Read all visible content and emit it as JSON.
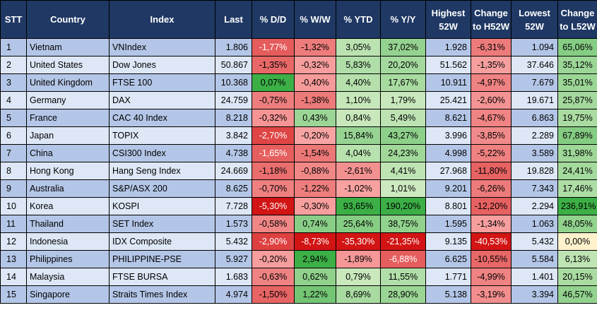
{
  "headers": [
    "STT",
    "Country",
    "Index",
    "Last",
    "% D/D",
    "% W/W",
    "% YTD",
    "% Y/Y",
    "Highest 52W",
    "Change to H52W",
    "Lowest 52W",
    "Change to L52W"
  ],
  "rows": [
    {
      "stt": "1",
      "country": "Vietnam",
      "index": "VNIndex",
      "last": "1.806",
      "dd": "-1,77%",
      "ww": "-1,32%",
      "ytd": "3,05%",
      "yy": "37,02%",
      "high": "1.928",
      "chh": "-6,31%",
      "low": "1.094",
      "chl": "65,06%"
    },
    {
      "stt": "2",
      "country": "United States",
      "index": "Dow Jones",
      "last": "50.867",
      "dd": "-1,35%",
      "ww": "-0,32%",
      "ytd": "5,83%",
      "yy": "20,20%",
      "high": "51.562",
      "chh": "-1,35%",
      "low": "37.646",
      "chl": "35,12%"
    },
    {
      "stt": "3",
      "country": "United Kingdom",
      "index": "FTSE 100",
      "last": "10.368",
      "dd": "0,07%",
      "ww": "-0,40%",
      "ytd": "4,40%",
      "yy": "17,67%",
      "high": "10.911",
      "chh": "-4,97%",
      "low": "7.679",
      "chl": "35,01%"
    },
    {
      "stt": "4",
      "country": "Germany",
      "index": "DAX",
      "last": "24.759",
      "dd": "-0,75%",
      "ww": "-1,38%",
      "ytd": "1,10%",
      "yy": "1,79%",
      "high": "25.421",
      "chh": "-2,60%",
      "low": "19.671",
      "chl": "25,87%"
    },
    {
      "stt": "5",
      "country": "France",
      "index": "CAC 40 Index",
      "last": "8.218",
      "dd": "-0,32%",
      "ww": "0,43%",
      "ytd": "0,84%",
      "yy": "5,49%",
      "high": "8.621",
      "chh": "-4,67%",
      "low": "6.863",
      "chl": "19,75%"
    },
    {
      "stt": "6",
      "country": "Japan",
      "index": "TOPIX",
      "last": "3.842",
      "dd": "-2,70%",
      "ww": "-0,20%",
      "ytd": "15,84%",
      "yy": "43,27%",
      "high": "3.996",
      "chh": "-3,85%",
      "low": "2.289",
      "chl": "67,89%"
    },
    {
      "stt": "7",
      "country": "China",
      "index": "CSI300 Index",
      "last": "4.738",
      "dd": "-1,65%",
      "ww": "-1,54%",
      "ytd": "4,04%",
      "yy": "24,23%",
      "high": "4.998",
      "chh": "-5,22%",
      "low": "3.589",
      "chl": "31,98%"
    },
    {
      "stt": "8",
      "country": "Hong Kong",
      "index": "Hang Seng Index",
      "last": "24.669",
      "dd": "-1,18%",
      "ww": "-0,88%",
      "ytd": "-2,61%",
      "yy": "4,41%",
      "high": "27.968",
      "chh": "-11,80%",
      "low": "19.828",
      "chl": "24,41%"
    },
    {
      "stt": "9",
      "country": "Australia",
      "index": "S&P/ASX 200",
      "last": "8.625",
      "dd": "-0,70%",
      "ww": "-1,22%",
      "ytd": "-1,02%",
      "yy": "1,01%",
      "high": "9.201",
      "chh": "-6,26%",
      "low": "7.343",
      "chl": "17,46%"
    },
    {
      "stt": "10",
      "country": "Korea",
      "index": "KOSPI",
      "last": "7.728",
      "dd": "-5,30%",
      "ww": "-0,30%",
      "ytd": "93,65%",
      "yy": "190,20%",
      "high": "8.801",
      "chh": "-12,20%",
      "low": "2.294",
      "chl": "236,91%"
    },
    {
      "stt": "11",
      "country": "Thailand",
      "index": "SET Index",
      "last": "1.573",
      "dd": "-0,58%",
      "ww": "0,74%",
      "ytd": "25,64%",
      "yy": "38,75%",
      "high": "1.595",
      "chh": "-1,34%",
      "low": "1.063",
      "chl": "48,05%"
    },
    {
      "stt": "12",
      "country": "Indonesia",
      "index": "IDX Composite",
      "last": "5.432",
      "dd": "-2,90%",
      "ww": "-8,73%",
      "ytd": "-35,30%",
      "yy": "-21,35%",
      "high": "9.135",
      "chh": "-40,53%",
      "low": "5.432",
      "chl": "0,00%"
    },
    {
      "stt": "13",
      "country": "Philippines",
      "index": "PHILIPPINE-PSE",
      "last": "5.927",
      "dd": "-0,20%",
      "ww": "2,94%",
      "ytd": "-1,89%",
      "yy": "-6,88%",
      "high": "6.625",
      "chh": "-10,55%",
      "low": "5.584",
      "chl": "6,13%"
    },
    {
      "stt": "14",
      "country": "Malaysia",
      "index": "FTSE BURSA",
      "last": "1.683",
      "dd": "-0,63%",
      "ww": "0,62%",
      "ytd": "0,79%",
      "yy": "11,55%",
      "high": "1.771",
      "chh": "-4,99%",
      "low": "1.401",
      "chl": "20,15%"
    },
    {
      "stt": "15",
      "country": "Singapore",
      "index": "Straits Times Index",
      "last": "4.974",
      "dd": "-1,50%",
      "ww": "1,22%",
      "ytd": "8,69%",
      "yy": "28,90%",
      "high": "5.138",
      "chh": "-3,19%",
      "low": "3.394",
      "chl": "46,57%"
    }
  ]
}
